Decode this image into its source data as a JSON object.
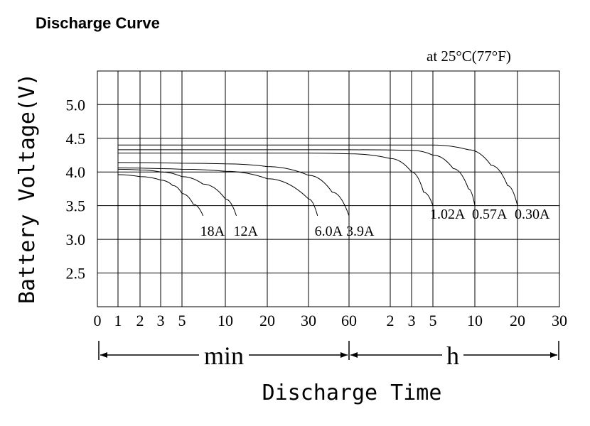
{
  "chart_data": {
    "type": "line",
    "title": "Discharge Curve",
    "subtitle": "at 25°C(77°F)",
    "ylabel": "Battery Voltage(V)",
    "xlabel": "Discharge Time",
    "ylim": [
      2.0,
      5.5
    ],
    "y_ticks": [
      "5.0",
      "4.5",
      "4.0",
      "3.5",
      "3.0",
      "2.5"
    ],
    "y_tick_values": [
      5.0,
      4.5,
      4.0,
      3.5,
      3.0,
      2.5
    ],
    "x_segments": [
      {
        "unit": "min",
        "ticks": [
          "0",
          "1",
          "2",
          "3",
          "5",
          "10",
          "20",
          "30",
          "60"
        ]
      },
      {
        "unit": "h",
        "ticks": [
          "2",
          "3",
          "5",
          "10",
          "20",
          "30"
        ]
      }
    ],
    "grid": true,
    "series": [
      {
        "name": "18A",
        "points": [
          [
            1,
            3.96
          ],
          [
            2,
            3.93
          ],
          [
            3,
            3.88
          ],
          [
            4,
            3.8
          ],
          [
            5,
            3.68
          ],
          [
            6,
            3.52
          ],
          [
            7,
            3.35
          ]
        ]
      },
      {
        "name": "12A",
        "points": [
          [
            1,
            4.04
          ],
          [
            2,
            4.03
          ],
          [
            3,
            4.0
          ],
          [
            5,
            3.93
          ],
          [
            7,
            3.82
          ],
          [
            10,
            3.6
          ],
          [
            12,
            3.35
          ]
        ]
      },
      {
        "name": "6.0A",
        "points": [
          [
            1,
            4.06
          ],
          [
            3,
            4.05
          ],
          [
            5,
            4.04
          ],
          [
            10,
            4.01
          ],
          [
            20,
            3.9
          ],
          [
            30,
            3.6
          ],
          [
            35,
            3.35
          ]
        ]
      },
      {
        "name": "3.9A",
        "points": [
          [
            1,
            4.14
          ],
          [
            5,
            4.13
          ],
          [
            10,
            4.12
          ],
          [
            20,
            4.08
          ],
          [
            30,
            3.95
          ],
          [
            45,
            3.7
          ],
          [
            60,
            3.35
          ]
        ]
      },
      {
        "name": "1.02A",
        "points": [
          [
            1,
            4.28
          ],
          [
            30,
            4.28
          ],
          [
            60,
            4.27
          ],
          [
            120,
            4.2
          ],
          [
            180,
            4.0
          ],
          [
            240,
            3.7
          ],
          [
            300,
            3.5
          ]
        ]
      },
      {
        "name": "0.57A",
        "points": [
          [
            1,
            4.33
          ],
          [
            60,
            4.33
          ],
          [
            180,
            4.32
          ],
          [
            300,
            4.25
          ],
          [
            420,
            4.05
          ],
          [
            540,
            3.75
          ],
          [
            600,
            3.5
          ]
        ]
      },
      {
        "name": "0.30A",
        "points": [
          [
            1,
            4.4
          ],
          [
            60,
            4.4
          ],
          [
            300,
            4.4
          ],
          [
            540,
            4.33
          ],
          [
            780,
            4.1
          ],
          [
            1020,
            3.8
          ],
          [
            1200,
            3.5
          ]
        ]
      }
    ]
  }
}
